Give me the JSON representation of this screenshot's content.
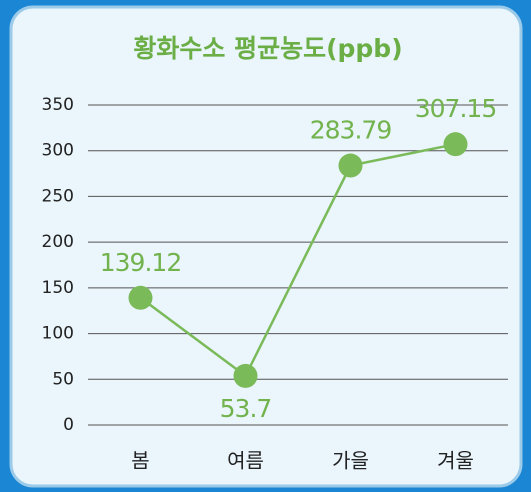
{
  "chart_data": {
    "type": "line",
    "title": "황화수소 평균농도(ppb)",
    "categories": [
      "봄",
      "여름",
      "가을",
      "겨울"
    ],
    "values": [
      139.12,
      53.7,
      283.79,
      307.15
    ],
    "color": "#7aba59",
    "ylim": [
      0,
      350
    ],
    "yticks": [
      0,
      50,
      100,
      150,
      200,
      250,
      300,
      350
    ],
    "grid": true
  }
}
